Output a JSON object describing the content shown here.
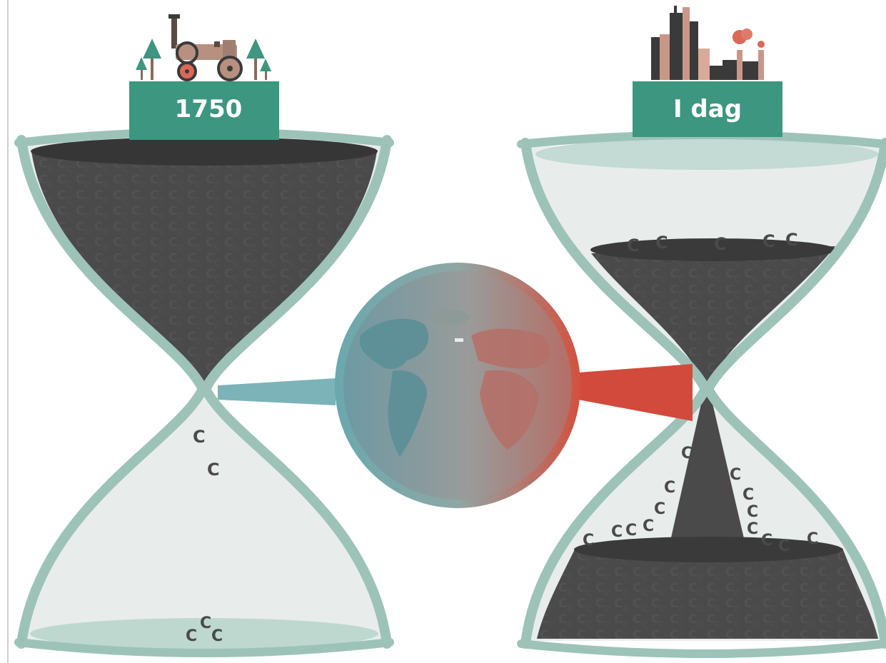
{
  "left_era": {
    "label": "1750",
    "icon": "steam-tractor-icon"
  },
  "right_era": {
    "label": "I dag",
    "icon": "city-factory-icon"
  },
  "symbol": "C",
  "center_icon": "globe-icon",
  "colors": {
    "glass_frame": "#9dc3b9",
    "label_box": "#3d9680",
    "carbon": "#4a4a4a",
    "carbon_dark": "#3a3a3a",
    "glass_fill": "#e8edeb",
    "cool": "#7bb3b9",
    "hot": "#d24a3b"
  }
}
